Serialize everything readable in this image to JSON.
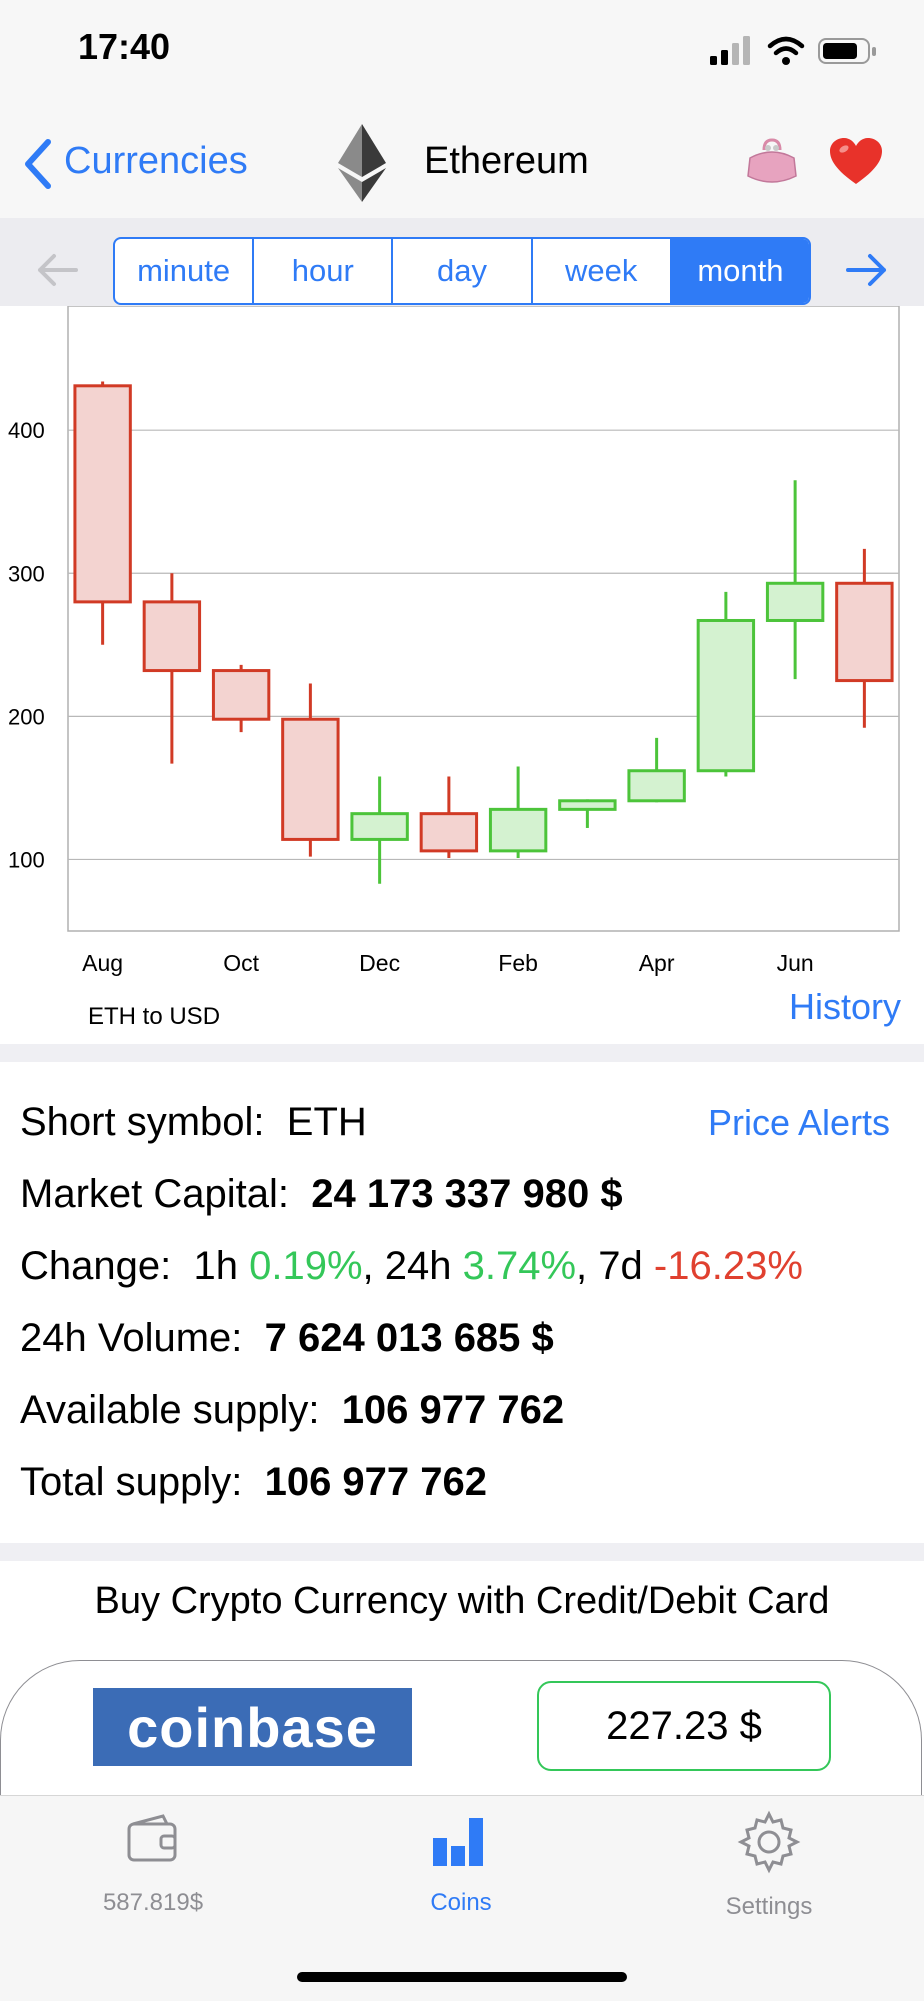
{
  "status_bar": {
    "time": "17:40"
  },
  "nav": {
    "back_label": "Currencies",
    "title": "Ethereum",
    "icons": [
      "ethereum-logo-icon",
      "purse-icon",
      "heart-icon"
    ]
  },
  "period": {
    "options": [
      "minute",
      "hour",
      "day",
      "week",
      "month"
    ],
    "selected": "month"
  },
  "chart_data": {
    "type": "candlestick",
    "caption": "ETH to USD",
    "x_tick_labels": [
      "Aug",
      "Oct",
      "Dec",
      "Feb",
      "Apr",
      "Jun"
    ],
    "y_tick_labels": [
      "400",
      "300",
      "200",
      "100"
    ],
    "ylim": [
      50,
      470
    ],
    "grid": true,
    "candles": [
      {
        "month": "Aug",
        "open": 431,
        "high": 434,
        "low": 250,
        "close": 280
      },
      {
        "month": "Sep",
        "open": 280,
        "high": 300,
        "low": 167,
        "close": 232
      },
      {
        "month": "Oct",
        "open": 232,
        "high": 236,
        "low": 189,
        "close": 198
      },
      {
        "month": "Nov",
        "open": 198,
        "high": 223,
        "low": 102,
        "close": 114
      },
      {
        "month": "Dec",
        "open": 114,
        "high": 158,
        "low": 83,
        "close": 132
      },
      {
        "month": "Jan",
        "open": 132,
        "high": 158,
        "low": 101,
        "close": 106
      },
      {
        "month": "Feb",
        "open": 106,
        "high": 165,
        "low": 101,
        "close": 135
      },
      {
        "month": "Mar",
        "open": 135,
        "high": 142,
        "low": 122,
        "close": 141
      },
      {
        "month": "Apr",
        "open": 141,
        "high": 185,
        "low": 140,
        "close": 162
      },
      {
        "month": "May",
        "open": 162,
        "high": 287,
        "low": 158,
        "close": 267
      },
      {
        "month": "Jun",
        "open": 267,
        "high": 365,
        "low": 226,
        "close": 293
      },
      {
        "month": "Jul",
        "open": 293,
        "high": 317,
        "low": 192,
        "close": 225
      }
    ],
    "colors": {
      "up_stroke": "#4cc43a",
      "up_fill": "#d4f2d0",
      "down_stroke": "#d13a25",
      "down_fill": "#f3d3d0",
      "grid": "#b8b8b8"
    }
  },
  "history_label": "History",
  "info": {
    "short_symbol_label": "Short symbol:",
    "short_symbol": "ETH",
    "price_alerts": "Price Alerts",
    "market_cap_label": "Market Capital:",
    "market_cap": "24 173 337 980 $",
    "change_label": "Change:",
    "change_1h_label": "1h",
    "change_1h": "0.19%",
    "change_24h_label": "24h",
    "change_24h": "3.74%",
    "change_7d_label": "7d",
    "change_7d": "-16.23%",
    "volume_label": "24h Volume:",
    "volume": "7 624 013 685 $",
    "available_label": "Available supply:",
    "available": "106 977 762",
    "total_label": "Total supply:",
    "total": "106 977 762"
  },
  "buy": {
    "title": "Buy Crypto Currency with Credit/Debit Card",
    "logo_text": "coinbase",
    "price": "227.23 $"
  },
  "tabs": [
    {
      "label": "587.819$",
      "icon": "wallet-icon"
    },
    {
      "label": "Coins",
      "icon": "bar-chart-icon"
    },
    {
      "label": "Settings",
      "icon": "gear-icon"
    }
  ],
  "colors": {
    "accent": "#2f7bf6",
    "positive": "#34c759",
    "negative": "#e0402f"
  }
}
